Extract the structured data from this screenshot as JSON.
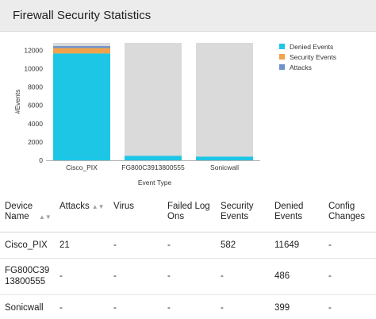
{
  "header": {
    "title": "Firewall Security Statistics"
  },
  "chart_data": {
    "type": "bar",
    "stacked": true,
    "categories": [
      "Cisco_PIX",
      "FG800C3913800555",
      "Sonicwall"
    ],
    "series": [
      {
        "name": "Denied Events",
        "color": "#1ec6e6",
        "values": [
          11649,
          486,
          399
        ]
      },
      {
        "name": "Security Events",
        "color": "#f2a24a",
        "values": [
          582,
          0,
          0
        ]
      },
      {
        "name": "Attacks",
        "color": "#6f93c9",
        "values": [
          21,
          0,
          0
        ]
      }
    ],
    "background_color": "#dadada",
    "ylim": [
      0,
      12800
    ],
    "yticks": [
      0,
      2000,
      4000,
      6000,
      8000,
      10000,
      12000
    ],
    "xlabel": "Event Type",
    "ylabel": "#Events",
    "legend": "top-right",
    "grid": false
  },
  "table": {
    "headers": {
      "device": "Device Name",
      "attacks": "Attacks",
      "virus": "Virus",
      "failed": "Failed Log Ons",
      "security": "Security Events",
      "denied": "Denied Events",
      "config": "Config Changes"
    },
    "sort_icon": "sort-icon",
    "rows": [
      {
        "device": "Cisco_PIX",
        "attacks": "21",
        "virus": "-",
        "failed": "-",
        "security": "582",
        "denied": "11649",
        "config": "-"
      },
      {
        "device": "FG800C3913800555",
        "attacks": "-",
        "virus": "-",
        "failed": "-",
        "security": "-",
        "denied": "486",
        "config": "-"
      },
      {
        "device": "Sonicwall",
        "attacks": "-",
        "virus": "-",
        "failed": "-",
        "security": "-",
        "denied": "399",
        "config": "-"
      }
    ]
  }
}
